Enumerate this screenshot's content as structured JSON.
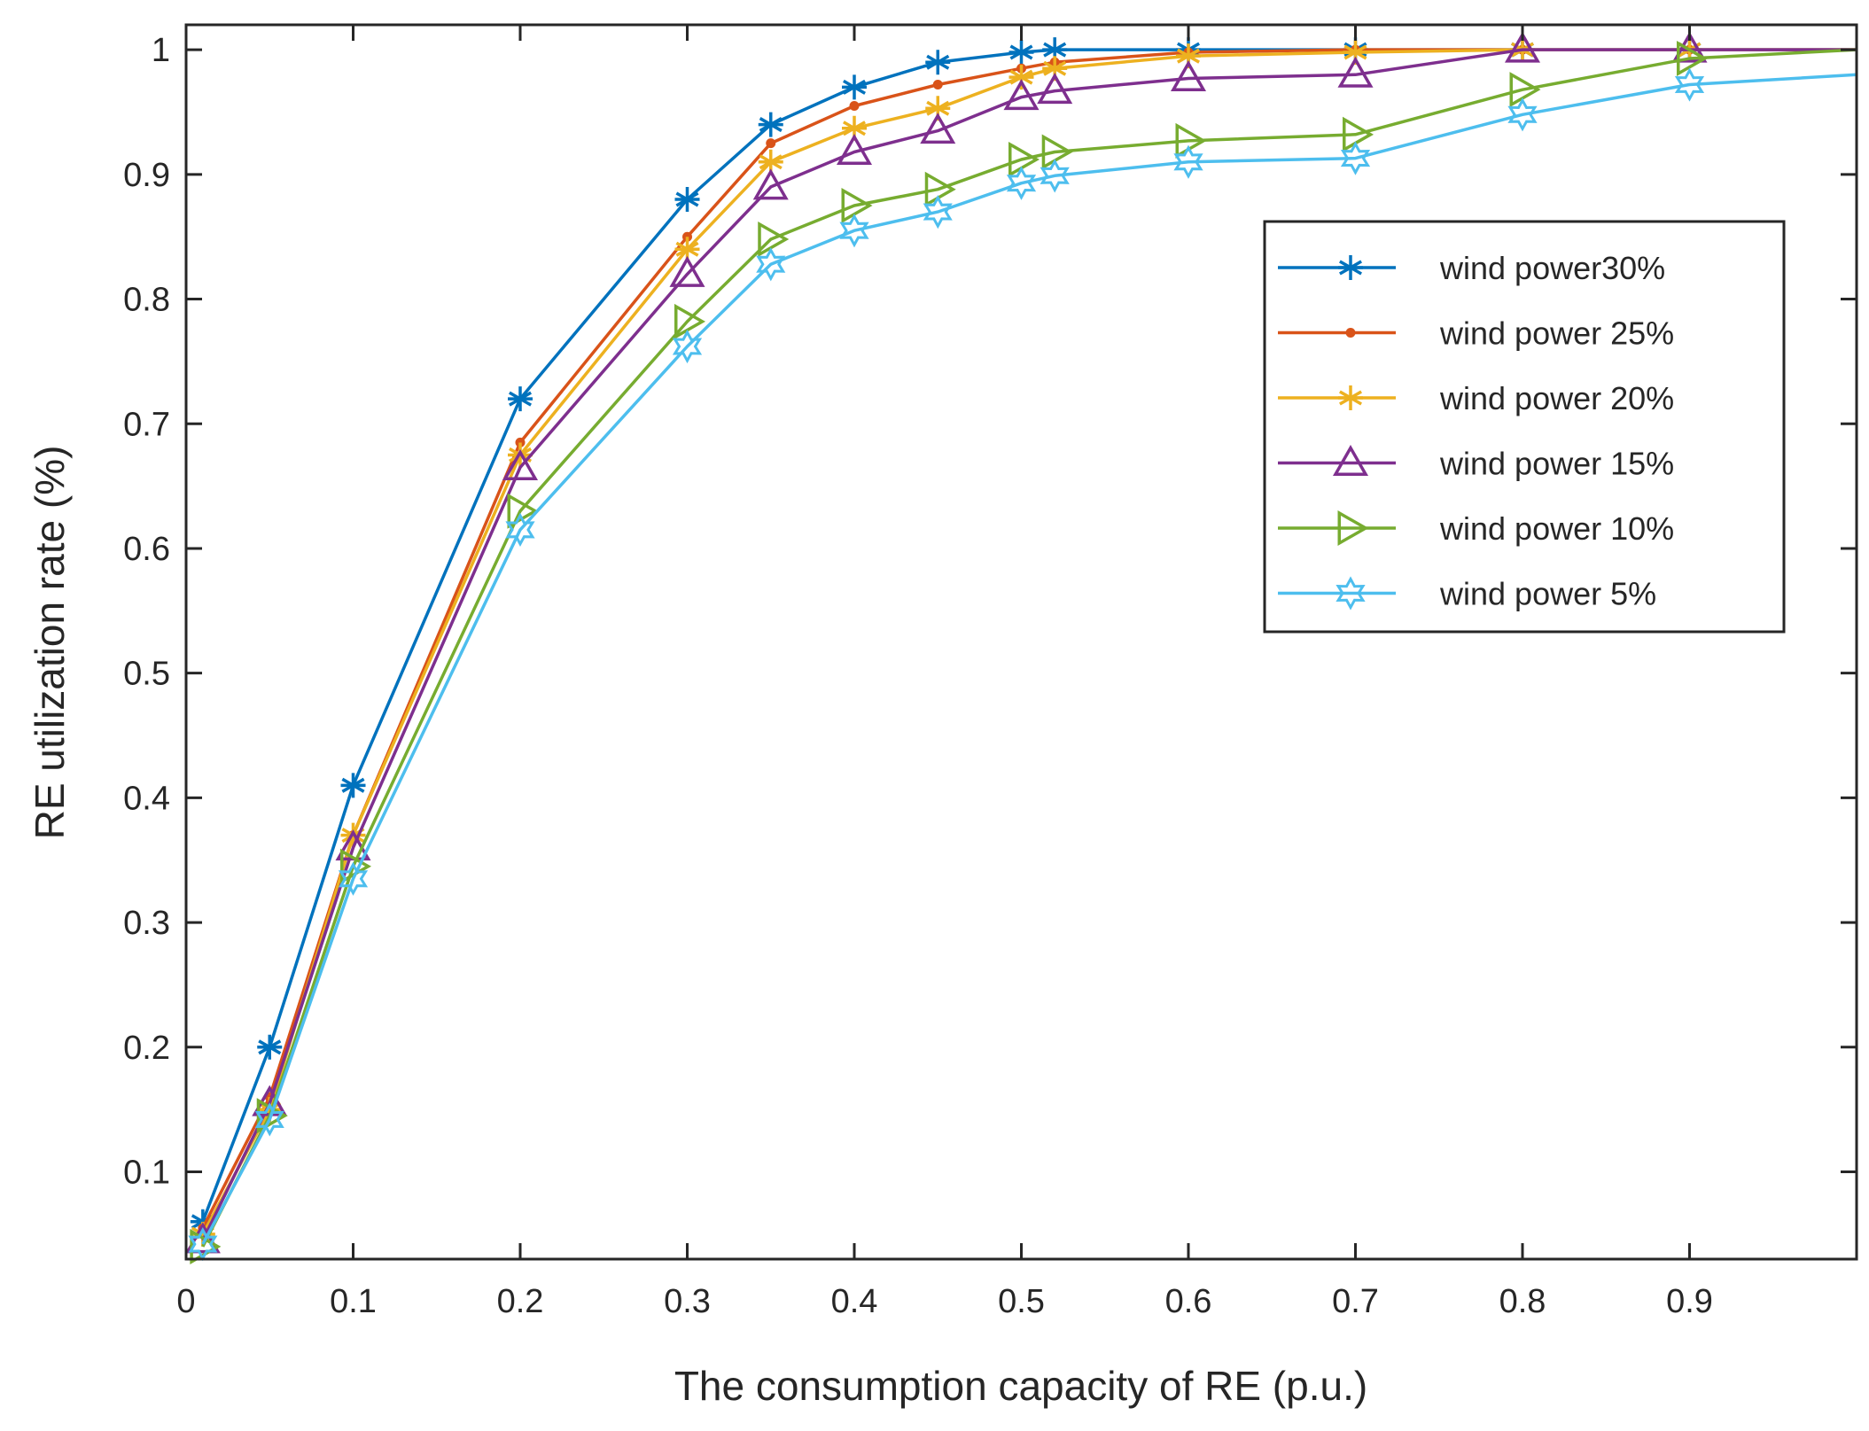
{
  "chart_data": {
    "type": "line",
    "title": "",
    "xlabel": "The consumption capacity of RE (p.u.)",
    "ylabel": "RE utilization rate (%)",
    "xlim": [
      0,
      1
    ],
    "ylim": [
      0.03,
      1.02
    ],
    "xticks": [
      0,
      0.1,
      0.2,
      0.3,
      0.4,
      0.5,
      0.6,
      0.7,
      0.8,
      0.9
    ],
    "xtick_labels": [
      "0",
      "0.1",
      "0.2",
      "0.3",
      "0.4",
      "0.5",
      "0.6",
      "0.7",
      "0.8",
      "0.9"
    ],
    "yticks": [
      0.1,
      0.2,
      0.3,
      0.4,
      0.5,
      0.6,
      0.7,
      0.8,
      0.9,
      1
    ],
    "ytick_labels": [
      "0.1",
      "0.2",
      "0.3",
      "0.4",
      "0.5",
      "0.6",
      "0.7",
      "0.8",
      "0.9",
      "1"
    ],
    "grid": false,
    "legend_position": "top-right",
    "x": [
      0.01,
      0.05,
      0.1,
      0.2,
      0.3,
      0.35,
      0.4,
      0.45,
      0.5,
      0.52,
      0.6,
      0.7,
      0.8,
      0.9,
      1.0
    ],
    "series": [
      {
        "name": "wind power30%",
        "color": "#0072BD",
        "marker": "asterisk",
        "values": [
          0.06,
          0.2,
          0.41,
          0.72,
          0.88,
          0.94,
          0.97,
          0.99,
          0.998,
          1.0,
          1.0,
          1.0,
          1.0,
          1.0,
          1.0
        ]
      },
      {
        "name": "wind power 25%",
        "color": "#D95319",
        "marker": "dot",
        "values": [
          0.055,
          0.16,
          0.37,
          0.685,
          0.85,
          0.925,
          0.955,
          0.972,
          0.985,
          0.99,
          0.998,
          1.0,
          1.0,
          1.0,
          1.0
        ]
      },
      {
        "name": "wind power 20%",
        "color": "#EDB120",
        "marker": "asterisk",
        "values": [
          0.05,
          0.15,
          0.37,
          0.675,
          0.84,
          0.91,
          0.937,
          0.953,
          0.978,
          0.985,
          0.995,
          0.998,
          1.0,
          1.0,
          1.0
        ]
      },
      {
        "name": "wind power 15%",
        "color": "#7E2F8E",
        "marker": "triangle-up",
        "values": [
          0.045,
          0.155,
          0.36,
          0.665,
          0.82,
          0.89,
          0.918,
          0.935,
          0.962,
          0.967,
          0.977,
          0.98,
          1.0,
          1.0,
          1.0
        ]
      },
      {
        "name": "wind power 10%",
        "color": "#77AC30",
        "marker": "triangle-right",
        "values": [
          0.04,
          0.145,
          0.345,
          0.63,
          0.782,
          0.848,
          0.875,
          0.888,
          0.912,
          0.918,
          0.927,
          0.932,
          0.968,
          0.993,
          1.0
        ]
      },
      {
        "name": "wind power 5%",
        "color": "#4DBEEE",
        "marker": "hexagram",
        "values": [
          0.042,
          0.142,
          0.335,
          0.615,
          0.762,
          0.828,
          0.855,
          0.87,
          0.893,
          0.899,
          0.91,
          0.913,
          0.948,
          0.972,
          0.98
        ]
      }
    ]
  }
}
